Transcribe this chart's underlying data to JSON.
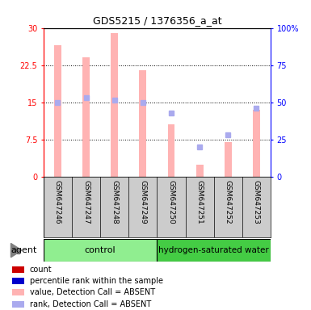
{
  "title": "GDS5215 / 1376356_a_at",
  "samples": [
    "GSM647246",
    "GSM647247",
    "GSM647248",
    "GSM647249",
    "GSM647250",
    "GSM647251",
    "GSM647252",
    "GSM647253"
  ],
  "value_absent": [
    26.5,
    24.0,
    29.0,
    21.5,
    10.5,
    2.5,
    7.0,
    13.5
  ],
  "rank_absent": [
    50.0,
    53.0,
    51.5,
    50.0,
    43.0,
    20.0,
    28.0,
    46.0
  ],
  "ylim_left": [
    0,
    30
  ],
  "ylim_right": [
    0,
    100
  ],
  "yticks_left": [
    0,
    7.5,
    15,
    22.5,
    30
  ],
  "yticks_right": [
    0,
    25,
    50,
    75,
    100
  ],
  "ytick_labels_left": [
    "0",
    "7.5",
    "15",
    "22.5",
    "30"
  ],
  "ytick_labels_right": [
    "0",
    "25",
    "50",
    "75",
    "100%"
  ],
  "bar_color_absent": "#FFB3B3",
  "rank_color_absent": "#AAAAEE",
  "group_colors_control": "#90EE90",
  "group_colors_hydrogen": "#44CC44",
  "legend_items": [
    {
      "label": "count",
      "color": "#CC0000"
    },
    {
      "label": "percentile rank within the sample",
      "color": "#0000CC"
    },
    {
      "label": "value, Detection Call = ABSENT",
      "color": "#FFB3B3"
    },
    {
      "label": "rank, Detection Call = ABSENT",
      "color": "#AAAAEE"
    }
  ],
  "agent_label": "agent",
  "bg_color": "#CCCCCC",
  "plot_bg": "#FFFFFF"
}
